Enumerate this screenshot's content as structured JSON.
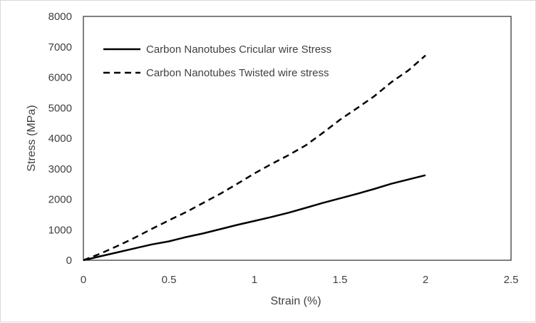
{
  "chart_data": {
    "type": "line",
    "title": "",
    "xlabel": "Strain (%)",
    "ylabel": "Stress (MPa)",
    "xlim": [
      0,
      2.5
    ],
    "ylim": [
      0,
      8000
    ],
    "x_ticks": [
      "0",
      "0.5",
      "1",
      "1.5",
      "2",
      "2.5"
    ],
    "y_ticks": [
      "0",
      "1000",
      "2000",
      "3000",
      "4000",
      "5000",
      "6000",
      "7000",
      "8000"
    ],
    "grid": false,
    "legend_position": "top-left",
    "series": [
      {
        "name": "Carbon Nanotubes Cricular wire Stress",
        "style": "solid",
        "color": "#000000",
        "x": [
          0,
          0.1,
          0.2,
          0.3,
          0.4,
          0.5,
          0.6,
          0.7,
          0.8,
          0.9,
          1.0,
          1.1,
          1.2,
          1.3,
          1.4,
          1.5,
          1.6,
          1.7,
          1.8,
          1.9,
          2.0
        ],
        "y": [
          0,
          130,
          260,
          390,
          520,
          620,
          760,
          880,
          1020,
          1160,
          1290,
          1420,
          1560,
          1720,
          1880,
          2030,
          2180,
          2340,
          2510,
          2650,
          2790
        ]
      },
      {
        "name": "Carbon Nanotubes Twisted wire stress",
        "style": "dashed",
        "color": "#000000",
        "x": [
          0,
          0.1,
          0.2,
          0.3,
          0.4,
          0.5,
          0.6,
          0.7,
          0.8,
          0.9,
          1.0,
          1.1,
          1.2,
          1.3,
          1.4,
          1.5,
          1.6,
          1.7,
          1.8,
          1.9,
          2.0
        ],
        "y": [
          0,
          220,
          470,
          740,
          1030,
          1310,
          1580,
          1880,
          2180,
          2510,
          2850,
          3160,
          3450,
          3770,
          4180,
          4610,
          4990,
          5380,
          5840,
          6230,
          6720
        ]
      }
    ]
  }
}
